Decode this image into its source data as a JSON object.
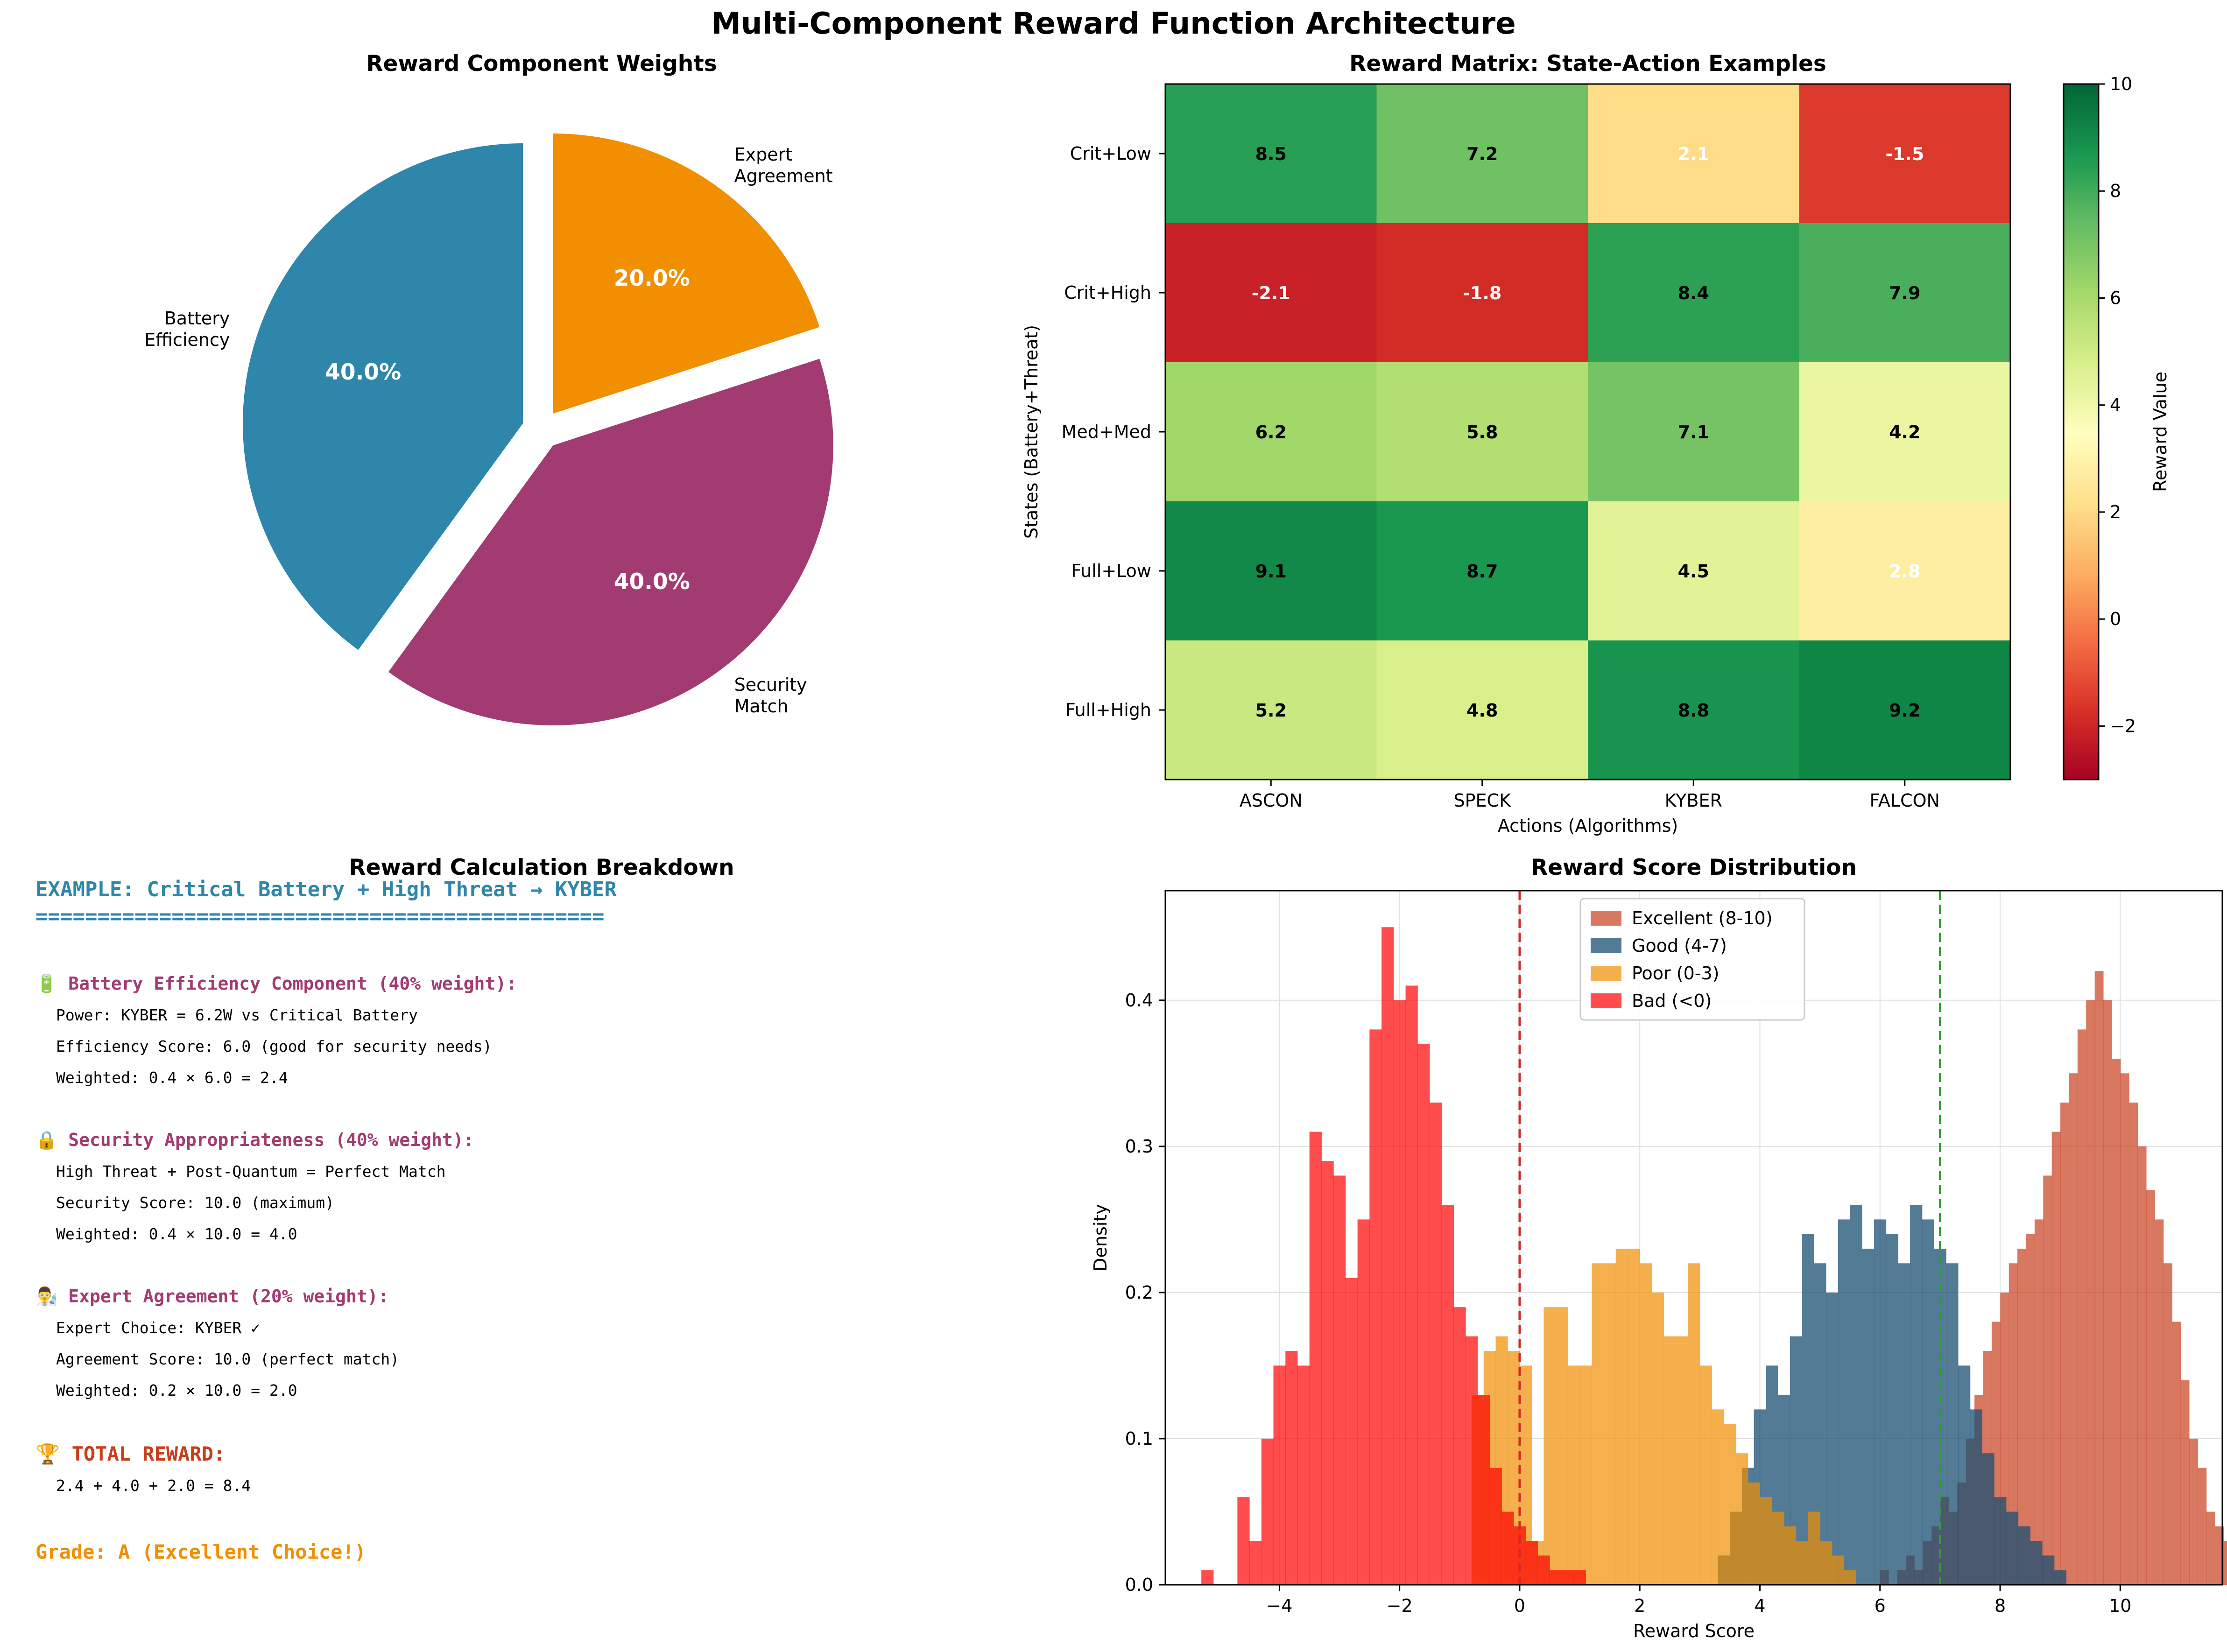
{
  "figure_title": "Multi-Component Reward Function Architecture",
  "colors": {
    "battery": "#2E86AB",
    "security": "#A23B72",
    "expert": "#F18F01",
    "total": "#C73E1D"
  },
  "chart_data": [
    {
      "type": "pie",
      "title": "Reward Component Weights",
      "labels": [
        "Battery\nEfficiency",
        "Security\nMatch",
        "Expert\nAgreement"
      ],
      "values": [
        40.0,
        40.0,
        20.0
      ],
      "autopct": [
        "40.0%",
        "40.0%",
        "20.0%"
      ],
      "colors": [
        "#2E86AB",
        "#A23B72",
        "#F18F01"
      ],
      "explode": true
    },
    {
      "type": "heatmap",
      "title": "Reward Matrix: State-Action Examples",
      "xlabel": "Actions (Algorithms)",
      "ylabel": "States (Battery+Threat)",
      "x_categories": [
        "ASCON",
        "SPECK",
        "KYBER",
        "FALCON"
      ],
      "y_categories": [
        "Crit+Low",
        "Crit+High",
        "Med+Med",
        "Full+Low",
        "Full+High"
      ],
      "values": [
        [
          8.5,
          7.2,
          2.1,
          -1.5
        ],
        [
          -2.1,
          -1.8,
          8.4,
          7.9
        ],
        [
          6.2,
          5.8,
          7.1,
          4.2
        ],
        [
          9.1,
          8.7,
          4.5,
          2.8
        ],
        [
          5.2,
          4.8,
          8.8,
          9.2
        ]
      ],
      "value_labels": [
        [
          "8.5",
          "7.2",
          "2.1",
          "-1.5"
        ],
        [
          "-2.1",
          "-1.8",
          "8.4",
          "7.9"
        ],
        [
          "6.2",
          "5.8",
          "7.1",
          "4.2"
        ],
        [
          "9.1",
          "8.7",
          "4.5",
          "2.8"
        ],
        [
          "5.2",
          "4.8",
          "8.8",
          "9.2"
        ]
      ],
      "colorscale": "RdYlGn",
      "vmin": -3,
      "vmax": 10,
      "colorbar_label": "Reward Value",
      "colorbar_ticks": [
        -2,
        0,
        2,
        4,
        6,
        8,
        10
      ],
      "colorbar_tick_labels": [
        "−2",
        "0",
        "2",
        "4",
        "6",
        "8",
        "10"
      ]
    },
    {
      "type": "histogram",
      "title": "Reward Score Distribution",
      "xlabel": "Reward Score",
      "ylabel": "Density",
      "xlim": [
        -5.9,
        11.7
      ],
      "ylim": [
        0,
        0.475
      ],
      "x_ticks": [
        -4,
        -2,
        0,
        2,
        4,
        6,
        8,
        10
      ],
      "x_tick_labels": [
        "−4",
        "−2",
        "0",
        "2",
        "4",
        "6",
        "8",
        "10"
      ],
      "y_ticks": [
        0.0,
        0.1,
        0.2,
        0.3,
        0.4
      ],
      "y_tick_labels": [
        "0.0",
        "0.1",
        "0.2",
        "0.3",
        "0.4"
      ],
      "grid": true,
      "legend_position": "top-center",
      "vlines": [
        {
          "x": 0,
          "color": "#d62728",
          "style": "dashed"
        },
        {
          "x": 7,
          "color": "#2ca02c",
          "style": "dashed"
        }
      ],
      "series": [
        {
          "name": "Excellent (8-10)",
          "color": "#C73E1D",
          "opacity": 0.7,
          "bin_start": 6.0,
          "bin_width": 0.143,
          "density": [
            0.01,
            0.0,
            0.01,
            0.02,
            0.01,
            0.03,
            0.04,
            0.06,
            0.05,
            0.07,
            0.1,
            0.13,
            0.16,
            0.18,
            0.2,
            0.22,
            0.23,
            0.24,
            0.25,
            0.28,
            0.31,
            0.33,
            0.35,
            0.38,
            0.4,
            0.42,
            0.4,
            0.36,
            0.35,
            0.33,
            0.3,
            0.27,
            0.25,
            0.22,
            0.18,
            0.14,
            0.1,
            0.08,
            0.05,
            0.04,
            0.03,
            0.02
          ]
        },
        {
          "name": "Good (4-7)",
          "color": "#1B4F72",
          "opacity": 0.75,
          "bin_start": 3.3,
          "bin_width": 0.2,
          "density": [
            0.02,
            0.05,
            0.08,
            0.12,
            0.15,
            0.13,
            0.17,
            0.24,
            0.22,
            0.2,
            0.25,
            0.26,
            0.23,
            0.25,
            0.24,
            0.22,
            0.26,
            0.25,
            0.23,
            0.22,
            0.15,
            0.12,
            0.09,
            0.06,
            0.05,
            0.04,
            0.03,
            0.02,
            0.01
          ]
        },
        {
          "name": "Poor (0-3)",
          "color": "#F18F01",
          "opacity": 0.7,
          "bin_start": -0.8,
          "bin_width": 0.2,
          "density": [
            0.13,
            0.16,
            0.17,
            0.16,
            0.15,
            0.03,
            0.19,
            0.19,
            0.15,
            0.15,
            0.22,
            0.22,
            0.23,
            0.23,
            0.22,
            0.2,
            0.17,
            0.17,
            0.22,
            0.15,
            0.12,
            0.11,
            0.09,
            0.07,
            0.06,
            0.05,
            0.04,
            0.03,
            0.05,
            0.03,
            0.02,
            0.01
          ]
        },
        {
          "name": "Bad (<0)",
          "color": "#FF0000",
          "opacity": 0.7,
          "bin_start": -5.3,
          "bin_width": 0.2,
          "density": [
            0.01,
            0.0,
            0.0,
            0.06,
            0.03,
            0.1,
            0.15,
            0.16,
            0.15,
            0.31,
            0.29,
            0.28,
            0.21,
            0.25,
            0.38,
            0.45,
            0.4,
            0.41,
            0.37,
            0.33,
            0.26,
            0.19,
            0.17,
            0.13,
            0.08,
            0.05,
            0.04,
            0.03,
            0.02,
            0.01,
            0.01,
            0.01
          ]
        }
      ]
    }
  ],
  "breakdown": {
    "title": "Reward Calculation Breakdown",
    "example": "EXAMPLE: Critical Battery + High Threat → KYBER",
    "separator": "==============================================",
    "battery_heading": "🔋 Battery Efficiency Component (40% weight):",
    "battery_lines": [
      "Power: KYBER = 6.2W vs Critical Battery",
      "Efficiency Score: 6.0 (good for security needs)",
      "Weighted: 0.4 × 6.0 = 2.4"
    ],
    "security_heading": "🔒 Security Appropriateness (40% weight):",
    "security_lines": [
      "High Threat + Post-Quantum = Perfect Match",
      "Security Score: 10.0 (maximum)",
      "Weighted: 0.4 × 10.0 = 4.0"
    ],
    "expert_heading": "👨‍🔬 Expert Agreement (20% weight):",
    "expert_lines": [
      "Expert Choice: KYBER ✓",
      "Agreement Score: 10.0 (perfect match)",
      "Weighted: 0.2 × 10.0 = 2.0"
    ],
    "total_heading": "🏆 TOTAL REWARD:",
    "total_line": "2.4 + 4.0 + 2.0 = 8.4",
    "grade": "Grade: A (Excellent Choice!)"
  }
}
